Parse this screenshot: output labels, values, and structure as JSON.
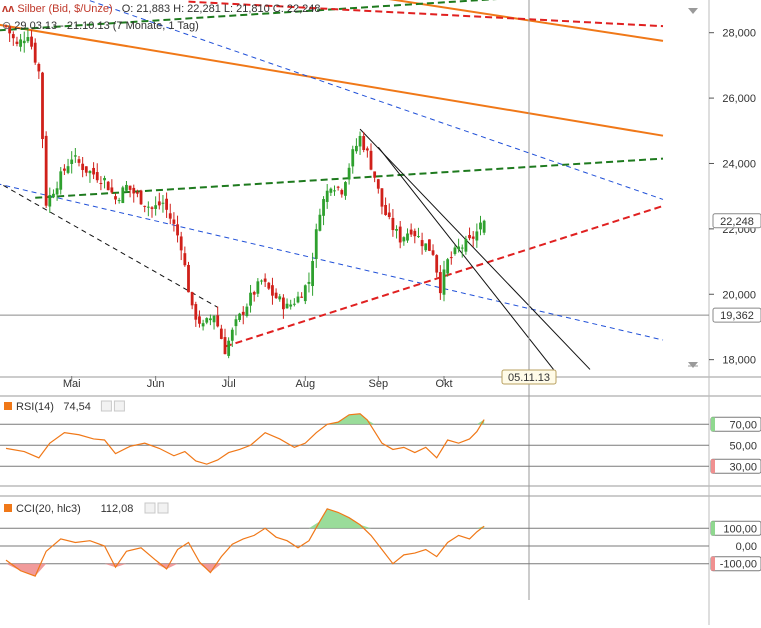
{
  "header": {
    "instrument": "Silber (Bid, $/Unze)",
    "ohlc": "O: 21,883  H: 22,281  L: 21,810  C: 22,248",
    "range": "29.03.13 - 21.10.13 (7 Monate, 1 Tag)"
  },
  "colors": {
    "candle_up": "#2ea02e",
    "candle_down": "#d0201a",
    "trend_green": "#1e7a1e",
    "trend_red": "#e02020",
    "trend_orange": "#f07818",
    "trend_blue": "#2050d8",
    "channel_black": "#111111",
    "osc_line": "#f07818",
    "osc_fill_up": "#8fd88f",
    "osc_fill_down": "#f09090"
  },
  "chart_data": [
    {
      "type": "candlestick",
      "title": "Silber (Bid, $/Unze)",
      "x_labels": [
        "Mai",
        "Jun",
        "Jul",
        "Aug",
        "Sep",
        "Okt"
      ],
      "y_ticks": [
        "28,000",
        "26,000",
        "24,000",
        "22,000",
        "20,000",
        "18,000"
      ],
      "ylim": [
        17.5,
        29.0
      ],
      "last_price": 22.248,
      "last_price_label": "22,248",
      "horizontal_level": 19.362,
      "horizontal_level_label": "19,362",
      "cursor_date_label": "05.11.13",
      "ohlc_summary": {
        "open": 21.883,
        "high": 22.281,
        "low": 21.81,
        "close": 22.248
      },
      "close_path": [
        [
          0,
          28.2
        ],
        [
          3,
          27.6
        ],
        [
          6,
          28.0
        ],
        [
          9,
          26.8
        ],
        [
          11,
          22.8
        ],
        [
          14,
          23.4
        ],
        [
          18,
          24.2
        ],
        [
          22,
          23.8
        ],
        [
          27,
          23.5
        ],
        [
          30,
          22.9
        ],
        [
          33,
          23.3
        ],
        [
          36,
          23.0
        ],
        [
          40,
          22.6
        ],
        [
          43,
          22.8
        ],
        [
          46,
          22.1
        ],
        [
          48,
          21.5
        ],
        [
          51,
          19.5
        ],
        [
          54,
          19.0
        ],
        [
          57,
          19.4
        ],
        [
          60,
          18.3
        ],
        [
          63,
          19.1
        ],
        [
          67,
          19.9
        ],
        [
          70,
          20.4
        ],
        [
          73,
          20.0
        ],
        [
          77,
          19.6
        ],
        [
          80,
          19.9
        ],
        [
          83,
          20.4
        ],
        [
          86,
          22.6
        ],
        [
          89,
          23.4
        ],
        [
          92,
          23.2
        ],
        [
          95,
          24.3
        ],
        [
          97,
          24.8
        ],
        [
          99,
          24.3
        ],
        [
          101,
          23.6
        ],
        [
          103,
          22.7
        ],
        [
          105,
          22.2
        ],
        [
          108,
          21.7
        ],
        [
          111,
          22.0
        ],
        [
          114,
          21.6
        ],
        [
          117,
          21.3
        ],
        [
          119,
          20.2
        ],
        [
          121,
          21.0
        ],
        [
          124,
          21.4
        ],
        [
          127,
          21.6
        ],
        [
          129,
          21.9
        ],
        [
          131,
          22.25
        ]
      ],
      "trendlines": [
        {
          "style": "solid",
          "color": "orange",
          "from": [
            -5,
            28.3
          ],
          "to": [
            180,
            24.85
          ]
        },
        {
          "style": "solid",
          "color": "orange",
          "from": [
            92,
            29.25
          ],
          "to": [
            180,
            27.75
          ]
        },
        {
          "style": "dashed",
          "color": "green",
          "from": [
            -5,
            28.05
          ],
          "to": [
            180,
            29.35
          ]
        },
        {
          "style": "dashed",
          "color": "green",
          "from": [
            8,
            22.95
          ],
          "to": [
            180,
            24.15
          ]
        },
        {
          "style": "dashed",
          "color": "red",
          "from": [
            50,
            28.95
          ],
          "to": [
            180,
            28.2
          ]
        },
        {
          "style": "dashed",
          "color": "red",
          "from": [
            60,
            18.4
          ],
          "to": [
            180,
            22.7
          ]
        },
        {
          "style": "dashed",
          "color": "blue",
          "from": [
            16,
            29.25
          ],
          "to": [
            180,
            22.9
          ]
        },
        {
          "style": "dashed",
          "color": "blue",
          "from": [
            -5,
            23.45
          ],
          "to": [
            180,
            18.6
          ]
        },
        {
          "style": "dashed",
          "color": "black",
          "from": [
            -5,
            23.6
          ],
          "to": [
            58,
            19.6
          ]
        },
        {
          "style": "solid",
          "color": "black",
          "from": [
            97,
            25.05
          ],
          "to": [
            160,
            17.7
          ]
        },
        {
          "style": "solid",
          "color": "black",
          "from": [
            102,
            24.5
          ],
          "to": [
            150,
            17.7
          ]
        }
      ]
    },
    {
      "type": "line",
      "title": "RSI(14)",
      "value_label": "74,54",
      "series": [
        {
          "values": [
            [
              0,
              47
            ],
            [
              5,
              44
            ],
            [
              9,
              38
            ],
            [
              12,
              52
            ],
            [
              16,
              62
            ],
            [
              20,
              60
            ],
            [
              24,
              56
            ],
            [
              27,
              55
            ],
            [
              30,
              42
            ],
            [
              34,
              49
            ],
            [
              38,
              52
            ],
            [
              42,
              47
            ],
            [
              46,
              40
            ],
            [
              49,
              44
            ],
            [
              52,
              35
            ],
            [
              55,
              32
            ],
            [
              58,
              36
            ],
            [
              61,
              43
            ],
            [
              64,
              46
            ],
            [
              67,
              50
            ],
            [
              71,
              62
            ],
            [
              75,
              56
            ],
            [
              79,
              48
            ],
            [
              82,
              52
            ],
            [
              85,
              62
            ],
            [
              88,
              70
            ],
            [
              91,
              72
            ],
            [
              94,
              79
            ],
            [
              97,
              80
            ],
            [
              99,
              74
            ],
            [
              101,
              63
            ],
            [
              103,
              52
            ],
            [
              106,
              46
            ],
            [
              109,
              48
            ],
            [
              112,
              43
            ],
            [
              115,
              48
            ],
            [
              118,
              38
            ],
            [
              121,
              55
            ],
            [
              124,
              52
            ],
            [
              127,
              56
            ],
            [
              129,
              63
            ],
            [
              131,
              74.5
            ]
          ]
        }
      ],
      "ylim": [
        15,
        95
      ],
      "levels": [
        {
          "value": 70,
          "label": "70,00"
        },
        {
          "value": 50,
          "label": "50,00"
        },
        {
          "value": 30,
          "label": "30,00"
        }
      ]
    },
    {
      "type": "line",
      "title": "CCI(20, hlc3)",
      "value_label": "112,08",
      "series": [
        {
          "values": [
            [
              0,
              -80
            ],
            [
              4,
              -140
            ],
            [
              8,
              -170
            ],
            [
              11,
              -30
            ],
            [
              15,
              40
            ],
            [
              19,
              20
            ],
            [
              23,
              30
            ],
            [
              27,
              0
            ],
            [
              30,
              -120
            ],
            [
              33,
              -30
            ],
            [
              37,
              -10
            ],
            [
              41,
              -80
            ],
            [
              44,
              -130
            ],
            [
              47,
              -20
            ],
            [
              50,
              20
            ],
            [
              53,
              -90
            ],
            [
              56,
              -150
            ],
            [
              59,
              -60
            ],
            [
              62,
              10
            ],
            [
              65,
              40
            ],
            [
              68,
              60
            ],
            [
              71,
              100
            ],
            [
              74,
              50
            ],
            [
              77,
              30
            ],
            [
              80,
              -10
            ],
            [
              83,
              30
            ],
            [
              86,
              140
            ],
            [
              88,
              210
            ],
            [
              91,
              190
            ],
            [
              94,
              160
            ],
            [
              97,
              120
            ],
            [
              100,
              60
            ],
            [
              103,
              -20
            ],
            [
              106,
              -100
            ],
            [
              109,
              -50
            ],
            [
              112,
              -40
            ],
            [
              115,
              -20
            ],
            [
              118,
              -60
            ],
            [
              121,
              20
            ],
            [
              124,
              60
            ],
            [
              127,
              40
            ],
            [
              129,
              80
            ],
            [
              131,
              112
            ]
          ]
        }
      ],
      "ylim": [
        -260,
        260
      ],
      "levels": [
        {
          "value": 100,
          "label": "100,00"
        },
        {
          "value": 0,
          "label": "0,00"
        },
        {
          "value": -100,
          "label": "-100,00"
        }
      ]
    }
  ]
}
